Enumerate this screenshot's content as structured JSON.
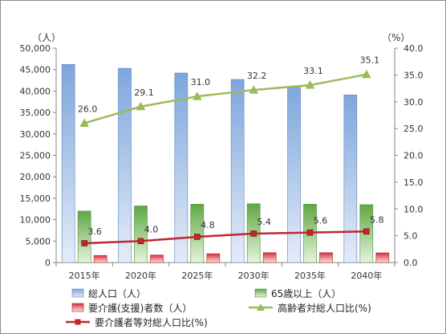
{
  "chart_data": {
    "type": "bar",
    "categories": [
      "2015年",
      "2020年",
      "2025年",
      "2030年",
      "2035年",
      "2040年"
    ],
    "left_axis": {
      "unit": "（人）",
      "range": [
        0,
        50000
      ],
      "ticks": [
        "0",
        "5,000",
        "10,000",
        "15,000",
        "20,000",
        "25,000",
        "30,000",
        "35,000",
        "40,000",
        "45,000",
        "50,000"
      ]
    },
    "right_axis": {
      "unit": "（%）",
      "range": [
        0,
        40
      ],
      "ticks": [
        "0.0",
        "5.0",
        "10.0",
        "15.0",
        "20.0",
        "25.0",
        "30.0",
        "35.0",
        "40.0"
      ]
    },
    "series": [
      {
        "name": "総人口（人）",
        "kind": "bar",
        "axis": "left",
        "color": "#7ea6dc",
        "values": [
          46200,
          45300,
          44200,
          42700,
          41100,
          39100
        ]
      },
      {
        "name": "65歳以上（人）",
        "kind": "bar",
        "axis": "left",
        "color": "#5fa843",
        "values": [
          12000,
          13200,
          13600,
          13700,
          13600,
          13500
        ]
      },
      {
        "name": "要介護(支援)者数（人）",
        "kind": "bar",
        "axis": "left",
        "color": "#d9303a",
        "values": [
          1650,
          1750,
          2050,
          2300,
          2300,
          2250
        ]
      },
      {
        "name": "高齢者対総人口比(%)",
        "kind": "line",
        "axis": "right",
        "color": "#9bbb59",
        "marker": "triangle",
        "values": [
          26.0,
          29.1,
          31.0,
          32.2,
          33.1,
          35.1
        ],
        "labels": [
          "26.0",
          "29.1",
          "31.0",
          "32.2",
          "33.1",
          "35.1"
        ]
      },
      {
        "name": "要介護者等対総人口比(%)",
        "kind": "line",
        "axis": "right",
        "color": "#c0272d",
        "marker": "square",
        "values": [
          3.6,
          4.0,
          4.8,
          5.4,
          5.6,
          5.8
        ],
        "labels": [
          "3.6",
          "4.0",
          "4.8",
          "5.4",
          "5.6",
          "5.8"
        ]
      }
    ],
    "grid": false,
    "legend_position": "bottom"
  }
}
